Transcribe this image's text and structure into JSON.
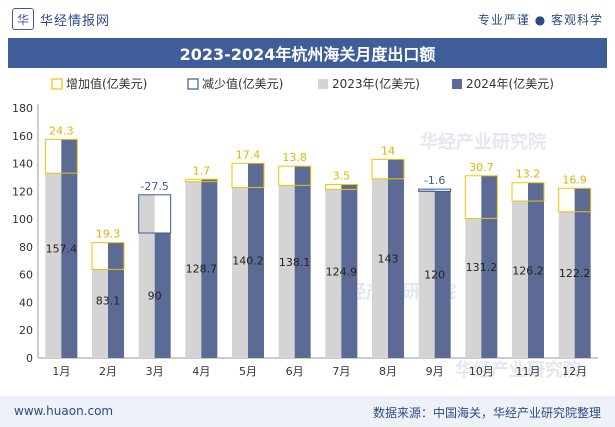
{
  "header": {
    "brand": "华经情报网",
    "logo_glyph": "华",
    "tagline": "专业严谨 ● 客观科学"
  },
  "footer": {
    "website": "www.huaon.com",
    "source": "数据来源：中国海关，华经产业研究院整理"
  },
  "watermark": "华经产业研究院",
  "colors": {
    "increase": "#f3c300",
    "decrease": "#3a5a9a",
    "y2023": "#d4d4d4",
    "y2024": "#5b6b96",
    "title_bg": "#3f5d99"
  },
  "chart_data": {
    "type": "bar",
    "title": "2023-2024年杭州海关月度出口额",
    "legend": [
      "增加值(亿美元)",
      "减少值(亿美元)",
      "2023年(亿美元)",
      "2024年(亿美元)"
    ],
    "categories": [
      "1月",
      "2月",
      "3月",
      "4月",
      "5月",
      "6月",
      "7月",
      "8月",
      "9月",
      "10月",
      "11月",
      "12月"
    ],
    "series": [
      {
        "name": "2023年(亿美元)",
        "values": [
          133.1,
          63.8,
          117.5,
          127.0,
          122.8,
          124.3,
          121.4,
          129.0,
          121.6,
          100.5,
          113.0,
          105.3
        ]
      },
      {
        "name": "2024年(亿美元)",
        "values": [
          157.4,
          83.1,
          90,
          128.7,
          140.2,
          138.1,
          124.9,
          143,
          120,
          131.2,
          126.2,
          122.2
        ]
      }
    ],
    "change_labels": [
      "24.3",
      "19.3",
      "-27.5",
      "1.7",
      "17.4",
      "13.8",
      "3.5",
      "14",
      "-1.6",
      "30.7",
      "13.2",
      "16.9"
    ],
    "value_labels": [
      "157.4",
      "83.1",
      "90",
      "128.7",
      "140.2",
      "138.1",
      "124.9",
      "143",
      "120",
      "131.2",
      "126.2",
      "122.2"
    ],
    "y_ticks": [
      "0",
      "20",
      "40",
      "60",
      "80",
      "100",
      "120",
      "140",
      "160",
      "180"
    ],
    "ylim": [
      0,
      180
    ],
    "legend_position": "top-center"
  }
}
